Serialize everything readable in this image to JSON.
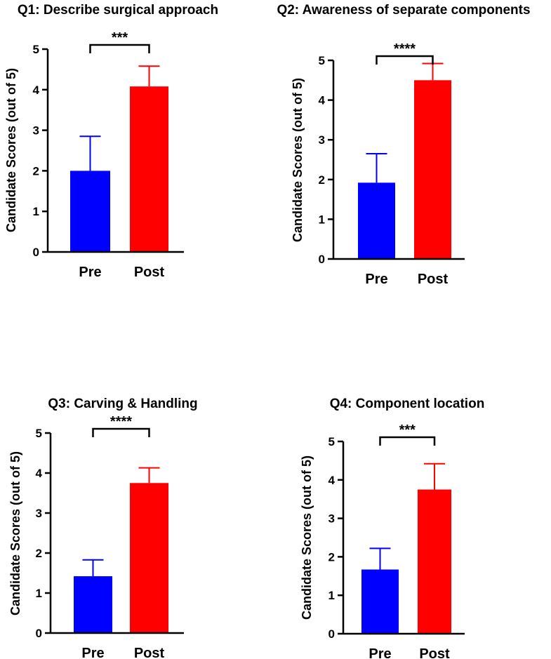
{
  "figure": {
    "width": 785,
    "height": 939
  },
  "colors": {
    "pre": "#0000FF",
    "post": "#FF0000",
    "axis": "#000000"
  },
  "chart_data": [
    {
      "type": "bar",
      "title": "Q1: Describe surgical approach",
      "ylabel": "Candidate Scores (out of 5)",
      "xlabel": "",
      "ylim": [
        0,
        5
      ],
      "yticks": [
        "0",
        "1",
        "2",
        "3",
        "4",
        "5"
      ],
      "categories": [
        "Pre",
        "Post"
      ],
      "values": [
        2.0,
        4.08
      ],
      "error_upper": [
        2.85,
        4.58
      ],
      "significance": "***"
    },
    {
      "type": "bar",
      "title": "Q2: Awareness of separate components",
      "ylabel": "Candidate Scores (out of 5)",
      "xlabel": "",
      "ylim": [
        0,
        5
      ],
      "yticks": [
        "0",
        "1",
        "2",
        "3",
        "4",
        "5"
      ],
      "categories": [
        "Pre",
        "Post"
      ],
      "values": [
        1.92,
        4.5
      ],
      "error_upper": [
        2.65,
        4.92
      ],
      "significance": "****"
    },
    {
      "type": "bar",
      "title": "Q3: Carving & Handling",
      "ylabel": "Candidate Scores (out of 5)",
      "xlabel": "",
      "ylim": [
        0,
        5
      ],
      "yticks": [
        "0",
        "1",
        "2",
        "3",
        "4",
        "5"
      ],
      "categories": [
        "Pre",
        "Post"
      ],
      "values": [
        1.42,
        3.75
      ],
      "error_upper": [
        1.83,
        4.13
      ],
      "significance": "****"
    },
    {
      "type": "bar",
      "title": "Q4: Component location",
      "ylabel": "Candidate Scores (out of 5)",
      "xlabel": "",
      "ylim": [
        0,
        5
      ],
      "yticks": [
        "0",
        "1",
        "2",
        "3",
        "4",
        "5"
      ],
      "categories": [
        "Pre",
        "Post"
      ],
      "values": [
        1.67,
        3.75
      ],
      "error_upper": [
        2.22,
        4.42
      ],
      "significance": "***"
    }
  ]
}
